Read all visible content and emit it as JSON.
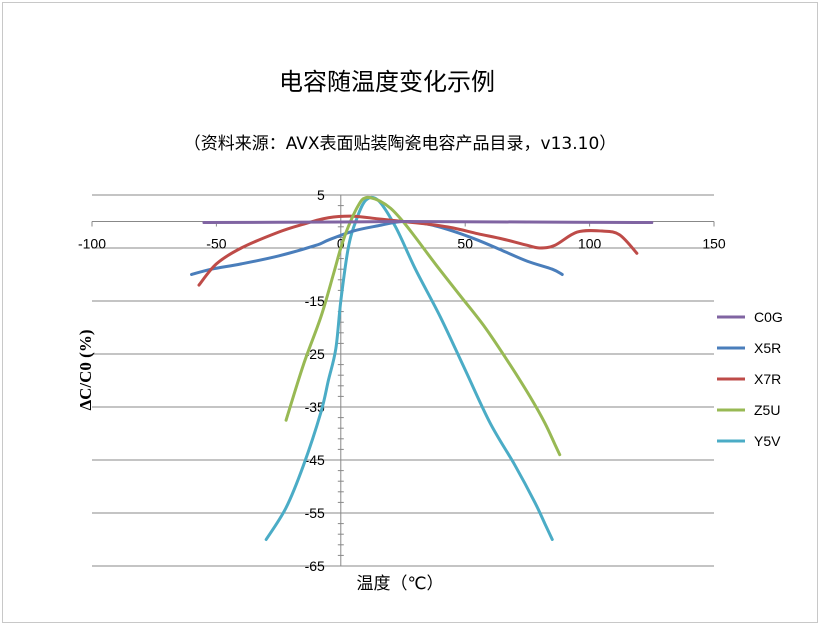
{
  "chart_data": {
    "type": "line",
    "title": "电容随温度变化示例",
    "subtitle": "（资料来源：AVX表面贴装陶瓷电容产品目录，v13.10）",
    "xlabel": "温度（℃）",
    "ylabel": "ΔC/C0 (%)",
    "xlim": [
      -100,
      150
    ],
    "ylim": [
      -65,
      5
    ],
    "x_ticks": [
      -100,
      -50,
      0,
      50,
      100,
      150
    ],
    "y_ticks": [
      5,
      -5,
      -15,
      -25,
      -35,
      -45,
      -55,
      -65
    ],
    "x_tick_labels": [
      "-100",
      "-50",
      "0",
      "50",
      "100",
      "150"
    ],
    "y_tick_labels": [
      "5",
      "",
      "-15",
      "-25",
      "-35",
      "-45",
      "-55",
      "-65"
    ],
    "grid": "horizontal",
    "legend_position": "right",
    "series": [
      {
        "name": "C0G",
        "color": "#8064A2",
        "points": [
          [
            -55,
            -0.2
          ],
          [
            0,
            -0.1
          ],
          [
            25,
            0
          ],
          [
            75,
            -0.1
          ],
          [
            125,
            -0.2
          ]
        ]
      },
      {
        "name": "X5R",
        "color": "#4A7EBB",
        "points": [
          [
            -60,
            -10
          ],
          [
            -52,
            -9
          ],
          [
            -40,
            -8
          ],
          [
            -25,
            -6.5
          ],
          [
            -10,
            -4.5
          ],
          [
            -5,
            -3.5
          ],
          [
            5,
            -1.8
          ],
          [
            15,
            -0.8
          ],
          [
            25,
            0
          ],
          [
            35,
            -0.5
          ],
          [
            45,
            -1.8
          ],
          [
            55,
            -3.5
          ],
          [
            65,
            -5.5
          ],
          [
            75,
            -7.5
          ],
          [
            85,
            -9
          ],
          [
            89,
            -10
          ]
        ]
      },
      {
        "name": "X7R",
        "color": "#BE4B48",
        "points": [
          [
            -57,
            -12
          ],
          [
            -50,
            -8
          ],
          [
            -40,
            -5
          ],
          [
            -25,
            -2
          ],
          [
            -15,
            -0.5
          ],
          [
            -5,
            0.7
          ],
          [
            5,
            1
          ],
          [
            15,
            0.5
          ],
          [
            25,
            0
          ],
          [
            35,
            -0.5
          ],
          [
            45,
            -1.2
          ],
          [
            55,
            -2.3
          ],
          [
            65,
            -3.3
          ],
          [
            75,
            -4.5
          ],
          [
            80,
            -5
          ],
          [
            86,
            -4.5
          ],
          [
            95,
            -2
          ],
          [
            105,
            -1.8
          ],
          [
            112,
            -2.5
          ],
          [
            119,
            -6
          ]
        ]
      },
      {
        "name": "Z5U",
        "color": "#98B954",
        "points": [
          [
            -22,
            -37.5
          ],
          [
            -15,
            -27
          ],
          [
            -8,
            -18
          ],
          [
            -3,
            -10
          ],
          [
            0,
            -5
          ],
          [
            3,
            -1
          ],
          [
            7,
            3
          ],
          [
            10,
            4.5
          ],
          [
            15,
            4
          ],
          [
            20,
            2.5
          ],
          [
            25,
            0
          ],
          [
            30,
            -3
          ],
          [
            38,
            -8
          ],
          [
            48,
            -14
          ],
          [
            58,
            -20
          ],
          [
            68,
            -27
          ],
          [
            76,
            -33
          ],
          [
            82,
            -38
          ],
          [
            86,
            -42
          ],
          [
            88,
            -44
          ]
        ]
      },
      {
        "name": "Y5V",
        "color": "#4BACC6",
        "points": [
          [
            -30,
            -60
          ],
          [
            -22,
            -54
          ],
          [
            -15,
            -46
          ],
          [
            -8,
            -36
          ],
          [
            -5,
            -30
          ],
          [
            -2,
            -24
          ],
          [
            0,
            -15
          ],
          [
            3,
            -5
          ],
          [
            6,
            0
          ],
          [
            10,
            4
          ],
          [
            15,
            4
          ],
          [
            22,
            -1
          ],
          [
            30,
            -9
          ],
          [
            40,
            -18
          ],
          [
            50,
            -28
          ],
          [
            60,
            -38
          ],
          [
            70,
            -46
          ],
          [
            78,
            -53
          ],
          [
            82,
            -57
          ],
          [
            85,
            -60
          ]
        ]
      }
    ]
  }
}
